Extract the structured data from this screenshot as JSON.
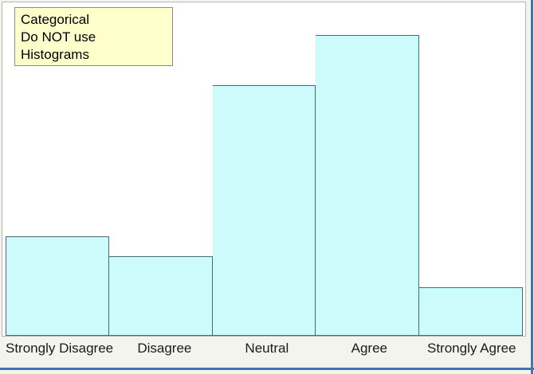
{
  "window": {
    "background": "#F4F4EF",
    "frame_blue": "#4273B4"
  },
  "plot": {
    "background": "#FFFFFF",
    "border": "#B5B5B5"
  },
  "annotation": {
    "lines": [
      "Categorical",
      "Do NOT use",
      "Histograms"
    ],
    "background": "#FFFFCC",
    "border": "#8C8C8C",
    "text_color": "#000000"
  },
  "chart_data": {
    "type": "bar",
    "style": "histogram-like touching bars, no gaps",
    "title": "",
    "xlabel": "",
    "ylabel": "",
    "categories": [
      "Strongly Disagree",
      "Disagree",
      "Neutral",
      "Agree",
      "Strongly Agree"
    ],
    "values": [
      125,
      100,
      315,
      378,
      61
    ],
    "values_unit": "relative bar height in pixels (no y-axis or tick labels visible)",
    "approx_percent_of_total": [
      12.8,
      10.2,
      32.2,
      38.6,
      6.2
    ],
    "bar_fill": "#CDFAFA",
    "bar_border": "#3F6E6E",
    "axes_visible": false,
    "gridlines": false,
    "legend": false
  }
}
